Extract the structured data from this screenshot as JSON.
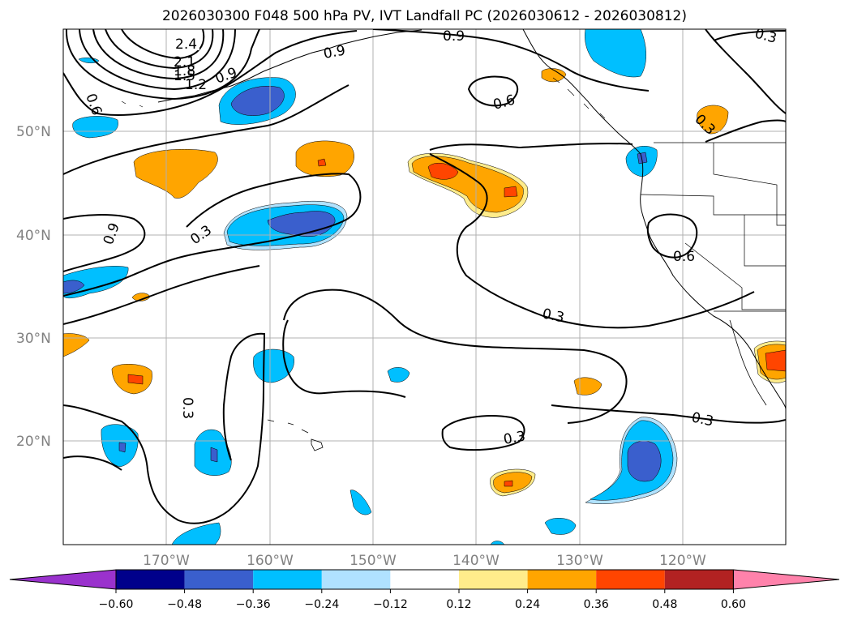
{
  "title": "2026030300 F048 500 hPa PV, IVT Landfall PC (2026030612 - 2026030812)",
  "axes": {
    "lat_labels": [
      "50°N",
      "40°N",
      "30°N",
      "20°N"
    ],
    "lon_labels": [
      "170°W",
      "160°W",
      "150°W",
      "140°W",
      "130°W",
      "120°W"
    ]
  },
  "colorbar": {
    "ticks": [
      "−0.60",
      "−0.48",
      "−0.36",
      "−0.24",
      "−0.12",
      "0.12",
      "0.24",
      "0.36",
      "0.48",
      "0.60"
    ],
    "colors": [
      "#9a32cd",
      "#00008b",
      "#3a5fcd",
      "#00bfff",
      "#b0e2ff",
      "#ffffff",
      "#ffec8b",
      "#ffa500",
      "#ff4500",
      "#b22222",
      "#ff82ab"
    ]
  },
  "contour_labels": [
    "2.4",
    "2.1",
    "1.8",
    "1.5",
    "1.2",
    "0.9",
    "0.6",
    "0.9",
    "0.3",
    "0.6",
    "0.9",
    "0.3",
    "0.3",
    "0.6",
    "0.3",
    "0.3",
    "0.3",
    "0.3"
  ]
}
